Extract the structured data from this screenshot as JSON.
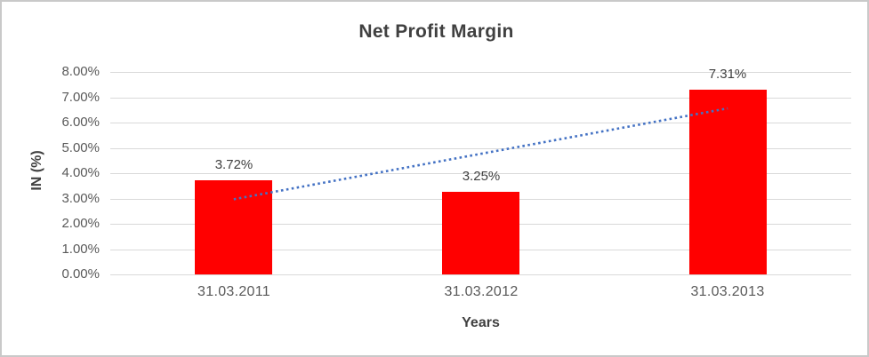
{
  "window": {
    "background": "#ffffff",
    "frame_border_color": "#c9c9c9"
  },
  "chart_data": {
    "type": "bar",
    "title": "Net Profit Margin",
    "xlabel": "Years",
    "ylabel": "IN (%)",
    "categories": [
      "31.03.2011",
      "31.03.2012",
      "31.03.2013"
    ],
    "series": [
      {
        "name": "Net Profit Margin",
        "values": [
          3.72,
          3.25,
          7.31
        ]
      }
    ],
    "data_labels": [
      "3.72%",
      "3.25%",
      "7.31%"
    ],
    "y_ticks": [
      {
        "value": 0,
        "label": "0.00%"
      },
      {
        "value": 1,
        "label": "1.00%"
      },
      {
        "value": 2,
        "label": "2.00%"
      },
      {
        "value": 3,
        "label": "3.00%"
      },
      {
        "value": 4,
        "label": "4.00%"
      },
      {
        "value": 5,
        "label": "5.00%"
      },
      {
        "value": 6,
        "label": "6.00%"
      },
      {
        "value": 7,
        "label": "7.00%"
      },
      {
        "value": 8,
        "label": "8.00%"
      }
    ],
    "ylim": [
      0,
      8
    ],
    "grid": true,
    "legend": false,
    "bar_color": "#ff0000",
    "trendline": {
      "type": "linear",
      "style": "dotted",
      "color": "#4472c4",
      "start_value": 2.97,
      "end_value": 6.56
    },
    "colors": {
      "gridline": "#d9d9d9",
      "title_text": "#404040",
      "tick_text": "#595959",
      "axis_title_text": "#404040",
      "data_label_text": "#404040"
    }
  }
}
